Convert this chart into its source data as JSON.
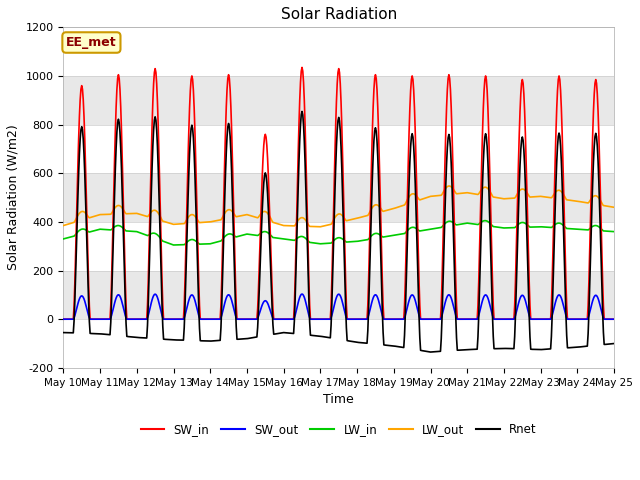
{
  "title": "Solar Radiation",
  "xlabel": "Time",
  "ylabel": "Solar Radiation (W/m2)",
  "ylim": [
    -200,
    1200
  ],
  "annotation": "EE_met",
  "series": {
    "SW_in": {
      "color": "#ff0000",
      "lw": 1.2
    },
    "SW_out": {
      "color": "#0000ff",
      "lw": 1.2
    },
    "LW_in": {
      "color": "#00cc00",
      "lw": 1.2
    },
    "LW_out": {
      "color": "#ffa500",
      "lw": 1.2
    },
    "Rnet": {
      "color": "#000000",
      "lw": 1.2
    }
  },
  "xtick_labels": [
    "May 10",
    "May 11",
    "May 12",
    "May 13",
    "May 14",
    "May 15",
    "May 16",
    "May 17",
    "May 18",
    "May 19",
    "May 20",
    "May 21",
    "May 22",
    "May 23",
    "May 24",
    "May 25"
  ],
  "yticks": [
    -200,
    0,
    200,
    400,
    600,
    800,
    1000,
    1200
  ],
  "band_colors": [
    "#ffffff",
    "#e8e8e8"
  ],
  "grid_color": "#cccccc",
  "legend_labels": [
    "SW_in",
    "SW_out",
    "LW_in",
    "LW_out",
    "Rnet"
  ],
  "figsize": [
    6.4,
    4.8
  ],
  "dpi": 100
}
